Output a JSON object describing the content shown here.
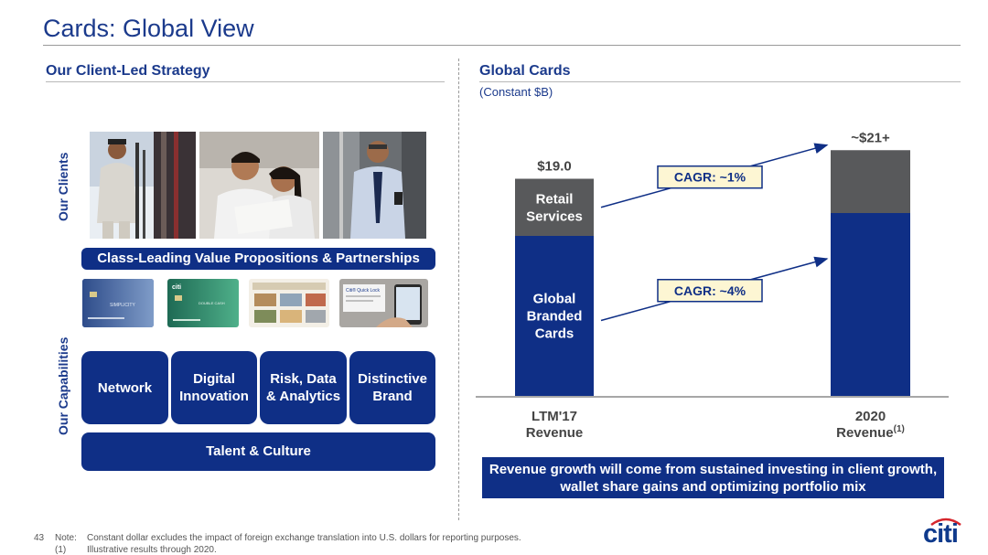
{
  "title": "Cards: Global View",
  "left": {
    "heading": "Our Client-Led Strategy",
    "clients_label": "Our Clients",
    "capabilities_label": "Our Capabilities",
    "banner": "Class-Leading Value Propositions & Partnerships",
    "capabilities": [
      "Network",
      "Digital Innovation",
      "Risk, Data & Analytics",
      "Distinctive Brand"
    ],
    "talent": "Talent & Culture",
    "card_texts": {
      "card1_brand": "SIMPLICITY",
      "card2_brand": "citi",
      "card2_text": "DOUBLE CASH",
      "card4_text": "Citi® Quick Lock"
    }
  },
  "right": {
    "heading": "Global Cards",
    "subtitle": "(Constant $B)",
    "conclusion": "Revenue growth will come from sustained investing in client growth, wallet share gains and optimizing portfolio mix"
  },
  "chart_data": {
    "type": "bar",
    "stacked": true,
    "categories": [
      "LTM'17 Revenue",
      "2020 Revenue"
    ],
    "category_lines": [
      [
        "LTM'17",
        "Revenue"
      ],
      [
        "2020",
        "Revenue"
      ]
    ],
    "category_superscript": [
      "",
      "(1)"
    ],
    "totals_labels": [
      "$19.0",
      "~$21+"
    ],
    "series": [
      {
        "name": "Global Branded Cards",
        "label_lines": [
          "Global",
          "Branded",
          "Cards"
        ],
        "values": [
          14.0,
          16.0
        ],
        "color": "#0f2f86"
      },
      {
        "name": "Retail Services",
        "label_lines": [
          "Retail",
          "Services"
        ],
        "values": [
          5.0,
          5.5
        ],
        "color": "#58595b"
      }
    ],
    "annotations": [
      "CAGR: ~4%",
      "CAGR: ~1%"
    ],
    "ylim": [
      0,
      22
    ]
  },
  "footer": {
    "page_number": "43",
    "notes": [
      {
        "label": "Note:",
        "text": "Constant dollar excludes the impact of foreign exchange translation into U.S. dollars for reporting purposes."
      },
      {
        "label": "(1)",
        "text": "Illustrative results through 2020."
      }
    ],
    "logo": "citi"
  },
  "colors": {
    "navy": "#0f2f86",
    "gray": "#58595b",
    "callout_fill": "#fdf6d3"
  }
}
